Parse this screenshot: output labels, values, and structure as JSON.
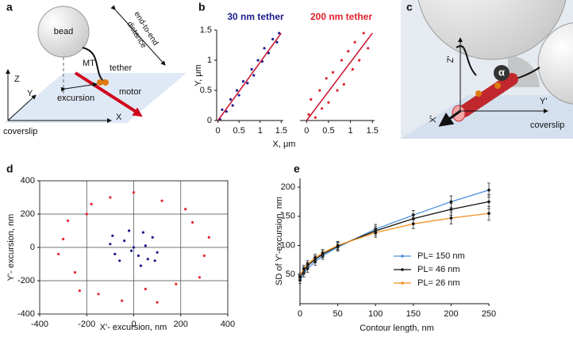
{
  "panel_a": {
    "label": "a",
    "bead": "bead",
    "distance_1": "end-to-end",
    "distance_2": "distance",
    "tether": "tether",
    "mt": "MT",
    "motor": "motor",
    "excursion": "excursion",
    "z": "Z",
    "y": "Y",
    "x": "X",
    "coverslip": "coverslip"
  },
  "panel_c": {
    "label": "c",
    "z": "Z'",
    "alpha": "α",
    "x": "X'",
    "y": "Y'",
    "coverslip": "coverslip"
  },
  "chart_data": [
    {
      "type": "scatter",
      "panel_label": "b",
      "title": "30 nm tether",
      "xlabel": "X, μm",
      "ylabel": "Y, μm",
      "xlim": [
        -0.03,
        1.55
      ],
      "ylim": [
        0,
        1.5
      ],
      "xticks": [
        0,
        0.5,
        1,
        1.5
      ],
      "yticks": [
        0,
        0.5,
        1,
        1.5
      ],
      "series": [
        {
          "color": "#1c1c8c",
          "x": [
            0.05,
            0.1,
            0.2,
            0.3,
            0.35,
            0.45,
            0.5,
            0.6,
            0.7,
            0.8,
            0.85,
            0.95,
            1.05,
            1.1,
            1.2,
            1.3,
            1.4,
            1.45
          ],
          "values": [
            0.02,
            0.18,
            0.15,
            0.35,
            0.25,
            0.5,
            0.42,
            0.65,
            0.62,
            0.85,
            0.75,
            1.0,
            0.98,
            1.2,
            1.12,
            1.35,
            1.3,
            1.45
          ]
        }
      ],
      "fit": {
        "color": "#c8102e",
        "x": [
          0,
          1.5
        ],
        "values": [
          0,
          1.45
        ]
      }
    },
    {
      "type": "scatter",
      "title": "200 nm tether",
      "xlim": [
        -0.15,
        1.55
      ],
      "ylim": [
        0,
        1.5
      ],
      "xticks": [
        0,
        0.5,
        1,
        1.5
      ],
      "series": [
        {
          "color": "#e0202a",
          "x": [
            0.05,
            0.1,
            0.2,
            0.3,
            0.35,
            0.45,
            0.5,
            0.6,
            0.7,
            0.8,
            0.85,
            0.95,
            1.05,
            1.1,
            1.2,
            1.3,
            1.4
          ],
          "values": [
            0.1,
            0.35,
            0.05,
            0.5,
            0.2,
            0.7,
            0.3,
            0.8,
            0.5,
            1.0,
            0.6,
            1.15,
            0.85,
            1.3,
            1.0,
            1.45,
            1.2
          ]
        }
      ],
      "fit": {
        "color": "#c8102e",
        "x": [
          0,
          1.5
        ],
        "values": [
          0,
          1.45
        ]
      }
    },
    {
      "type": "scatter",
      "panel_label": "d",
      "xlabel": "X'- excursion, nm",
      "ylabel": "Y'- excursion, nm",
      "grid": true,
      "xlim": [
        -400,
        400
      ],
      "ylim": [
        -400,
        400
      ],
      "xticks": [
        -400,
        -200,
        0,
        200,
        400
      ],
      "yticks": [
        -400,
        -200,
        0,
        200,
        400
      ],
      "series": [
        {
          "color": "#e8262e",
          "x": [
            -300,
            -250,
            -200,
            -150,
            -100,
            -50,
            0,
            50,
            120,
            180,
            250,
            300,
            -320,
            220,
            -230,
            280,
            -180,
            100,
            320,
            -280
          ],
          "values": [
            50,
            -150,
            200,
            -280,
            300,
            -320,
            330,
            -250,
            280,
            -220,
            150,
            -50,
            -40,
            230,
            -260,
            -180,
            260,
            -330,
            60,
            160
          ]
        },
        {
          "color": "#1c1c8c",
          "x": [
            -100,
            -60,
            -20,
            30,
            80,
            100,
            0,
            -40,
            50,
            -80,
            20,
            60,
            -10,
            40,
            -90,
            90
          ],
          "values": [
            20,
            -80,
            100,
            -110,
            60,
            -30,
            0,
            40,
            10,
            -40,
            -50,
            -70,
            -20,
            90,
            70,
            -80
          ]
        }
      ]
    },
    {
      "type": "line",
      "panel_label": "e",
      "xlabel": "Contour length, nm",
      "ylabel": "SD of Y'-excursion, nm",
      "legend": "lower right",
      "xlim": [
        0,
        250
      ],
      "ylim": [
        0,
        215
      ],
      "xticks": [
        0,
        50,
        100,
        150,
        200,
        250
      ],
      "yticks": [
        50,
        100,
        150,
        200
      ],
      "x": [
        0,
        5,
        10,
        20,
        30,
        50,
        100,
        150,
        200,
        250
      ],
      "series": [
        {
          "name": "PL= 150 nm",
          "color": "#4a90d9",
          "values": [
            40,
            52,
            60,
            72,
            82,
            97,
            128,
            152,
            175,
            195
          ],
          "errors": [
            5,
            6,
            6,
            6,
            6,
            7,
            8,
            8,
            10,
            12
          ]
        },
        {
          "name": "PL= 46 nm",
          "color": "#111111",
          "values": [
            45,
            57,
            65,
            76,
            85,
            99,
            125,
            146,
            162,
            175
          ],
          "errors": [
            5,
            6,
            6,
            6,
            6,
            7,
            8,
            8,
            10,
            12
          ]
        },
        {
          "name": "PL= 26 nm",
          "color": "#f0901e",
          "values": [
            47,
            60,
            68,
            79,
            87,
            100,
            122,
            137,
            147,
            155
          ],
          "errors": [
            5,
            6,
            6,
            6,
            6,
            7,
            8,
            8,
            10,
            12
          ]
        }
      ]
    }
  ]
}
